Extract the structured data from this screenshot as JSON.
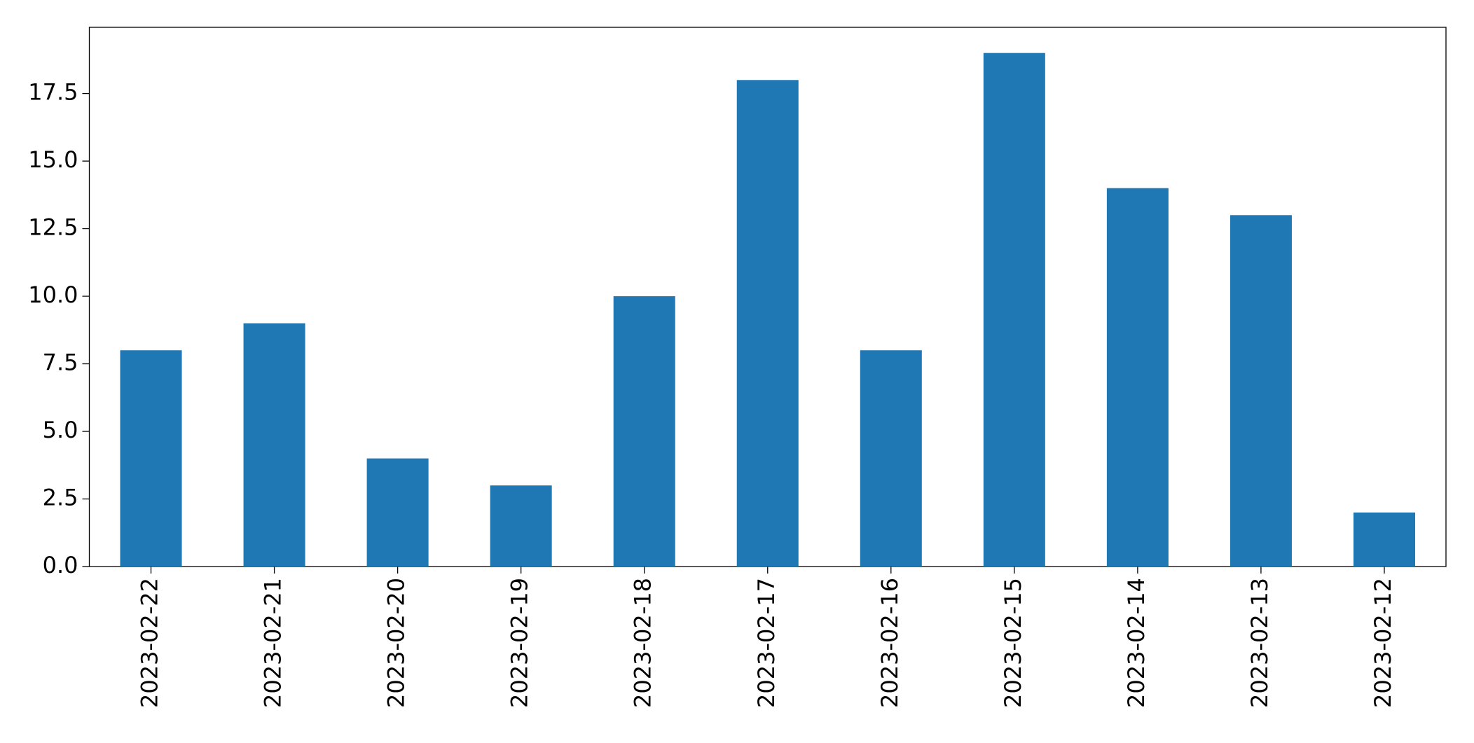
{
  "chart_data": {
    "type": "bar",
    "categories": [
      "2023-02-22",
      "2023-02-21",
      "2023-02-20",
      "2023-02-19",
      "2023-02-18",
      "2023-02-17",
      "2023-02-16",
      "2023-02-15",
      "2023-02-14",
      "2023-02-13",
      "2023-02-12"
    ],
    "values": [
      8,
      9,
      4,
      3,
      10,
      18,
      8,
      19,
      14,
      13,
      2
    ],
    "color": "#1f77b4",
    "ylim": [
      0,
      19.95
    ],
    "yticks": [
      {
        "value": 0,
        "label": "0.0"
      },
      2.5,
      {
        "value": 5,
        "label": "5.0"
      },
      7.5,
      {
        "value": 10,
        "label": "10.0"
      },
      12.5,
      {
        "value": 15,
        "label": "15.0"
      },
      17.5
    ],
    "grid": false
  }
}
